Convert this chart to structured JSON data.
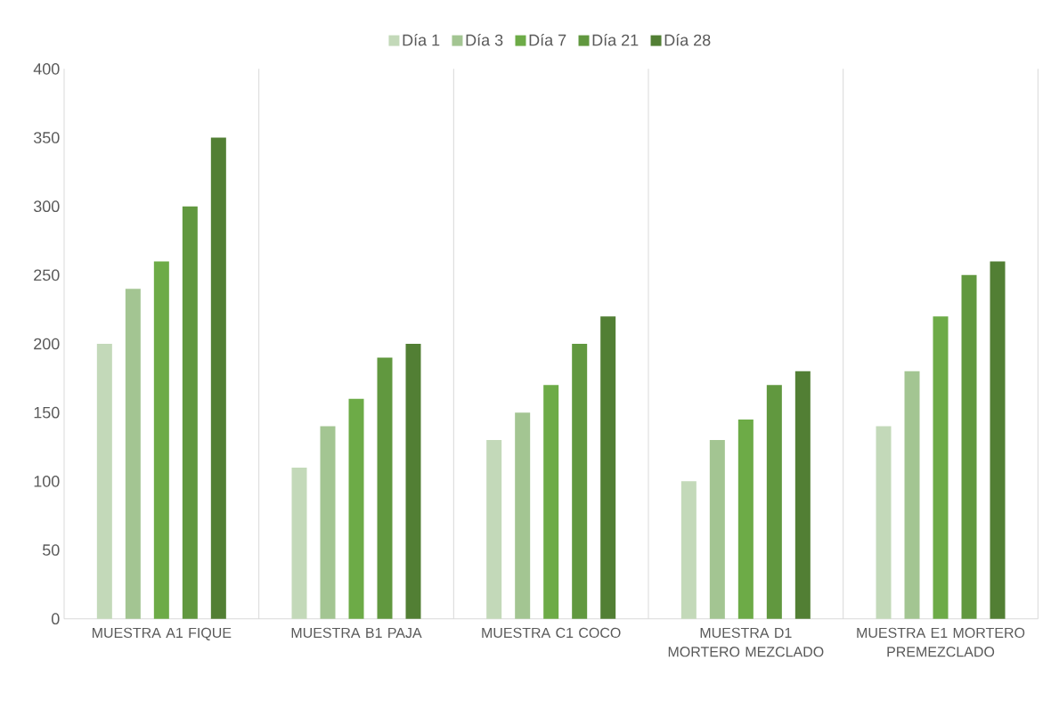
{
  "chart_data": {
    "type": "bar",
    "categories": [
      "MUESTRA A1 FIQUE",
      "MUESTRA B1 PAJA",
      "MUESTRA C1 COCO",
      "MUESTRA D1 MORTERO MEZCLADO",
      "MUESTRA E1 MORTERO PREMEZCLADO"
    ],
    "series": [
      {
        "name": "Día 1",
        "color": "#c3d9b9",
        "values": [
          200,
          110,
          130,
          100,
          140
        ]
      },
      {
        "name": "Día 3",
        "color": "#a3c592",
        "values": [
          240,
          140,
          150,
          130,
          180
        ]
      },
      {
        "name": "Día 7",
        "color": "#6dab47",
        "values": [
          260,
          160,
          170,
          145,
          220
        ]
      },
      {
        "name": "Día 21",
        "color": "#61983f",
        "values": [
          300,
          190,
          200,
          170,
          250
        ]
      },
      {
        "name": "Día 28",
        "color": "#527f34",
        "values": [
          350,
          200,
          220,
          180,
          260
        ]
      }
    ],
    "ylim": [
      0,
      400
    ],
    "yticks": [
      0,
      50,
      100,
      150,
      200,
      250,
      300,
      350,
      400
    ],
    "grid": "x",
    "legend": "top"
  }
}
